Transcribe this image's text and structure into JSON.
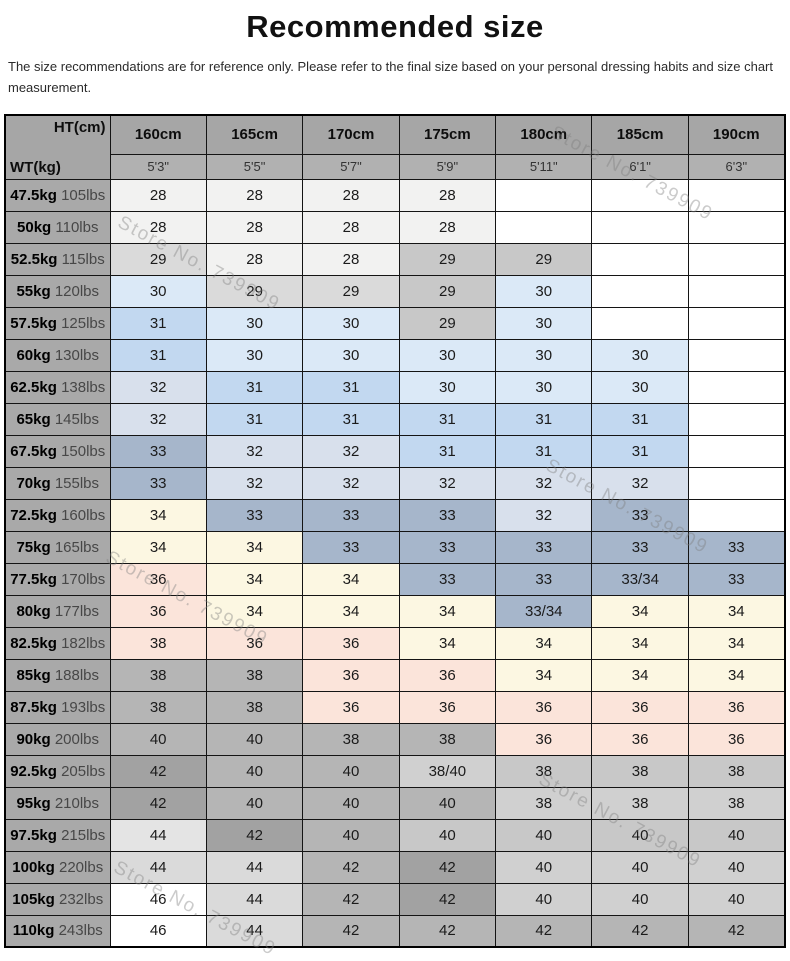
{
  "title": "Recommended size",
  "disclaimer": "The size recommendations are for reference only. Please refer to the final size based on your personal dressing habits and size chart measurement.",
  "watermark": {
    "text": "Store No. 739909"
  },
  "palette": {
    "w": "#ffffff",
    "ow": "#f2f2f1",
    "lg": "#dadada",
    "mg": "#c8c8c8",
    "gl": "#d0d0d0",
    "xl": "#e4e4e4",
    "pb": "#dbe9f7",
    "bl": "#c2d8f0",
    "bg": "#d8e0ec",
    "sl": "#a6b6cb",
    "cr": "#fcf7e2",
    "pk": "#fbe4da",
    "gy": "#b5b5b5",
    "dg": "#a2a2a2",
    "header": "#a6a6a6",
    "subheader": "#b1b1b1",
    "weight_col": "#a9a9a9",
    "border": "#141414"
  },
  "chart_data": {
    "type": "table",
    "title": "Recommended size",
    "corner": {
      "ht": "HT(cm)",
      "wt": "WT(kg)"
    },
    "columns": [
      {
        "cm": "160cm",
        "ft": "5'3\""
      },
      {
        "cm": "165cm",
        "ft": "5'5\""
      },
      {
        "cm": "170cm",
        "ft": "5'7\""
      },
      {
        "cm": "175cm",
        "ft": "5'9\""
      },
      {
        "cm": "180cm",
        "ft": "5'11\""
      },
      {
        "cm": "185cm",
        "ft": "6'1\""
      },
      {
        "cm": "190cm",
        "ft": "6'3\""
      }
    ],
    "rows": [
      {
        "kg": "47.5kg",
        "lbs": "105lbs",
        "cells": [
          [
            "28",
            "ow"
          ],
          [
            "28",
            "ow"
          ],
          [
            "28",
            "ow"
          ],
          [
            "28",
            "ow"
          ],
          [
            "",
            "w"
          ],
          [
            "",
            "w"
          ],
          [
            "",
            "w"
          ]
        ]
      },
      {
        "kg": "50kg",
        "lbs": "110lbs",
        "cells": [
          [
            "28",
            "ow"
          ],
          [
            "28",
            "ow"
          ],
          [
            "28",
            "ow"
          ],
          [
            "28",
            "ow"
          ],
          [
            "",
            "w"
          ],
          [
            "",
            "w"
          ],
          [
            "",
            "w"
          ]
        ]
      },
      {
        "kg": "52.5kg",
        "lbs": "115lbs",
        "cells": [
          [
            "29",
            "lg"
          ],
          [
            "28",
            "ow"
          ],
          [
            "28",
            "ow"
          ],
          [
            "29",
            "mg"
          ],
          [
            "29",
            "mg"
          ],
          [
            "",
            "w"
          ],
          [
            "",
            "w"
          ]
        ]
      },
      {
        "kg": "55kg",
        "lbs": "120lbs",
        "cells": [
          [
            "30",
            "pb"
          ],
          [
            "29",
            "lg"
          ],
          [
            "29",
            "lg"
          ],
          [
            "29",
            "mg"
          ],
          [
            "30",
            "pb"
          ],
          [
            "",
            "w"
          ],
          [
            "",
            "w"
          ]
        ]
      },
      {
        "kg": "57.5kg",
        "lbs": "125lbs",
        "cells": [
          [
            "31",
            "bl"
          ],
          [
            "30",
            "pb"
          ],
          [
            "30",
            "pb"
          ],
          [
            "29",
            "mg"
          ],
          [
            "30",
            "pb"
          ],
          [
            "",
            "w"
          ],
          [
            "",
            "w"
          ]
        ]
      },
      {
        "kg": "60kg",
        "lbs": "130lbs",
        "cells": [
          [
            "31",
            "bl"
          ],
          [
            "30",
            "pb"
          ],
          [
            "30",
            "pb"
          ],
          [
            "30",
            "pb"
          ],
          [
            "30",
            "pb"
          ],
          [
            "30",
            "pb"
          ],
          [
            "",
            "w"
          ]
        ]
      },
      {
        "kg": "62.5kg",
        "lbs": "138lbs",
        "cells": [
          [
            "32",
            "bg"
          ],
          [
            "31",
            "bl"
          ],
          [
            "31",
            "bl"
          ],
          [
            "30",
            "pb"
          ],
          [
            "30",
            "pb"
          ],
          [
            "30",
            "pb"
          ],
          [
            "",
            "w"
          ]
        ]
      },
      {
        "kg": "65kg",
        "lbs": "145lbs",
        "cells": [
          [
            "32",
            "bg"
          ],
          [
            "31",
            "bl"
          ],
          [
            "31",
            "bl"
          ],
          [
            "31",
            "bl"
          ],
          [
            "31",
            "bl"
          ],
          [
            "31",
            "bl"
          ],
          [
            "",
            "w"
          ]
        ]
      },
      {
        "kg": "67.5kg",
        "lbs": "150lbs",
        "cells": [
          [
            "33",
            "sl"
          ],
          [
            "32",
            "bg"
          ],
          [
            "32",
            "bg"
          ],
          [
            "31",
            "bl"
          ],
          [
            "31",
            "bl"
          ],
          [
            "31",
            "bl"
          ],
          [
            "",
            "w"
          ]
        ]
      },
      {
        "kg": "70kg",
        "lbs": "155lbs",
        "cells": [
          [
            "33",
            "sl"
          ],
          [
            "32",
            "bg"
          ],
          [
            "32",
            "bg"
          ],
          [
            "32",
            "bg"
          ],
          [
            "32",
            "bg"
          ],
          [
            "32",
            "bg"
          ],
          [
            "",
            "w"
          ]
        ]
      },
      {
        "kg": "72.5kg",
        "lbs": "160lbs",
        "cells": [
          [
            "34",
            "cr"
          ],
          [
            "33",
            "sl"
          ],
          [
            "33",
            "sl"
          ],
          [
            "33",
            "sl"
          ],
          [
            "32",
            "bg"
          ],
          [
            "33",
            "sl"
          ],
          [
            "",
            "w"
          ]
        ]
      },
      {
        "kg": "75kg",
        "lbs": "165lbs",
        "cells": [
          [
            "34",
            "cr"
          ],
          [
            "34",
            "cr"
          ],
          [
            "33",
            "sl"
          ],
          [
            "33",
            "sl"
          ],
          [
            "33",
            "sl"
          ],
          [
            "33",
            "sl"
          ],
          [
            "33",
            "sl"
          ]
        ]
      },
      {
        "kg": "77.5kg",
        "lbs": "170lbs",
        "cells": [
          [
            "36",
            "pk"
          ],
          [
            "34",
            "cr"
          ],
          [
            "34",
            "cr"
          ],
          [
            "33",
            "sl"
          ],
          [
            "33",
            "sl"
          ],
          [
            "33/34",
            "sl"
          ],
          [
            "33",
            "sl"
          ]
        ]
      },
      {
        "kg": "80kg",
        "lbs": "177lbs",
        "cells": [
          [
            "36",
            "pk"
          ],
          [
            "34",
            "cr"
          ],
          [
            "34",
            "cr"
          ],
          [
            "34",
            "cr"
          ],
          [
            "33/34",
            "sl"
          ],
          [
            "34",
            "cr"
          ],
          [
            "34",
            "cr"
          ]
        ]
      },
      {
        "kg": "82.5kg",
        "lbs": "182lbs",
        "cells": [
          [
            "38",
            "pk"
          ],
          [
            "36",
            "pk"
          ],
          [
            "36",
            "pk"
          ],
          [
            "34",
            "cr"
          ],
          [
            "34",
            "cr"
          ],
          [
            "34",
            "cr"
          ],
          [
            "34",
            "cr"
          ]
        ]
      },
      {
        "kg": "85kg",
        "lbs": "188lbs",
        "cells": [
          [
            "38",
            "gy"
          ],
          [
            "38",
            "gy"
          ],
          [
            "36",
            "pk"
          ],
          [
            "36",
            "pk"
          ],
          [
            "34",
            "cr"
          ],
          [
            "34",
            "cr"
          ],
          [
            "34",
            "cr"
          ]
        ]
      },
      {
        "kg": "87.5kg",
        "lbs": "193lbs",
        "cells": [
          [
            "38",
            "gy"
          ],
          [
            "38",
            "gy"
          ],
          [
            "36",
            "pk"
          ],
          [
            "36",
            "pk"
          ],
          [
            "36",
            "pk"
          ],
          [
            "36",
            "pk"
          ],
          [
            "36",
            "pk"
          ]
        ]
      },
      {
        "kg": "90kg",
        "lbs": "200lbs",
        "cells": [
          [
            "40",
            "gy"
          ],
          [
            "40",
            "gy"
          ],
          [
            "38",
            "gy"
          ],
          [
            "38",
            "gy"
          ],
          [
            "36",
            "pk"
          ],
          [
            "36",
            "pk"
          ],
          [
            "36",
            "pk"
          ]
        ]
      },
      {
        "kg": "92.5kg",
        "lbs": "205lbs",
        "cells": [
          [
            "42",
            "dg"
          ],
          [
            "40",
            "gy"
          ],
          [
            "40",
            "gy"
          ],
          [
            "38/40",
            "gl"
          ],
          [
            "38",
            "mg"
          ],
          [
            "38",
            "mg"
          ],
          [
            "38",
            "mg"
          ]
        ]
      },
      {
        "kg": "95kg",
        "lbs": "210lbs",
        "cells": [
          [
            "42",
            "dg"
          ],
          [
            "40",
            "gy"
          ],
          [
            "40",
            "gy"
          ],
          [
            "40",
            "gy"
          ],
          [
            "38",
            "gl"
          ],
          [
            "38",
            "gl"
          ],
          [
            "38",
            "gl"
          ]
        ]
      },
      {
        "kg": "97.5kg",
        "lbs": "215lbs",
        "cells": [
          [
            "44",
            "xl"
          ],
          [
            "42",
            "dg"
          ],
          [
            "40",
            "gy"
          ],
          [
            "40",
            "mg"
          ],
          [
            "40",
            "mg"
          ],
          [
            "40",
            "mg"
          ],
          [
            "40",
            "mg"
          ]
        ]
      },
      {
        "kg": "100kg",
        "lbs": "220lbs",
        "cells": [
          [
            "44",
            "lg"
          ],
          [
            "44",
            "lg"
          ],
          [
            "42",
            "gy"
          ],
          [
            "42",
            "dg"
          ],
          [
            "40",
            "gl"
          ],
          [
            "40",
            "gl"
          ],
          [
            "40",
            "gl"
          ]
        ]
      },
      {
        "kg": "105kg",
        "lbs": "232lbs",
        "cells": [
          [
            "46",
            "w"
          ],
          [
            "44",
            "lg"
          ],
          [
            "42",
            "gy"
          ],
          [
            "42",
            "dg"
          ],
          [
            "40",
            "gl"
          ],
          [
            "40",
            "gl"
          ],
          [
            "40",
            "gl"
          ]
        ]
      },
      {
        "kg": "110kg",
        "lbs": "243lbs",
        "cells": [
          [
            "46",
            "w"
          ],
          [
            "44",
            "lg"
          ],
          [
            "42",
            "gy"
          ],
          [
            "42",
            "gy"
          ],
          [
            "42",
            "gy"
          ],
          [
            "42",
            "gy"
          ],
          [
            "42",
            "gy"
          ]
        ]
      }
    ]
  }
}
